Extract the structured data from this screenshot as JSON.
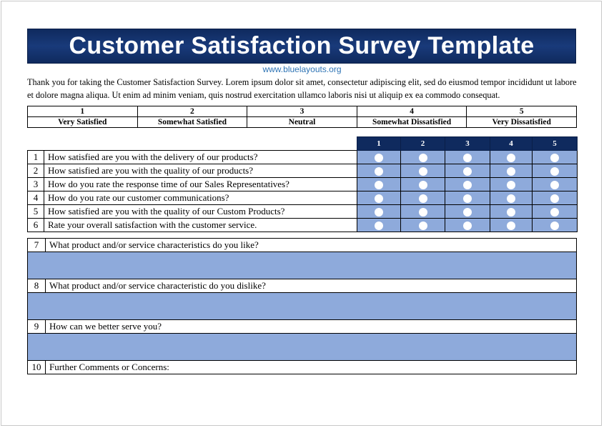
{
  "title": "Customer Satisfaction Survey Template",
  "website": "www.bluelayouts.org",
  "intro": "Thank you for taking the Customer Satisfaction Survey. Lorem ipsum dolor sit amet, consectetur adipiscing elit, sed do eiusmod tempor incididunt ut labore et dolore magna aliqua. Ut enim ad minim veniam, quis nostrud exercitation ullamco laboris nisi ut aliquip ex ea commodo consequat.",
  "scale": [
    {
      "number": "1",
      "label": "Very Satisfied"
    },
    {
      "number": "2",
      "label": "Somewhat Satisfied"
    },
    {
      "number": "3",
      "label": "Neutral"
    },
    {
      "number": "4",
      "label": "Somewhat Dissatisfied"
    },
    {
      "number": "5",
      "label": "Very Dissatisfied"
    }
  ],
  "rating_columns": [
    "1",
    "2",
    "3",
    "4",
    "5"
  ],
  "rating_questions": [
    {
      "number": "1",
      "text": "How satisfied are you with the delivery of our products?"
    },
    {
      "number": "2",
      "text": "How satisfied are you with the quality of our products?"
    },
    {
      "number": "3",
      "text": "How do you rate the response time of our Sales Representatives?"
    },
    {
      "number": "4",
      "text": "How do you rate our customer communications?"
    },
    {
      "number": "5",
      "text": "How satisfied are you with the quality of our Custom Products?"
    },
    {
      "number": "6",
      "text": "Rate your overall satisfaction with the customer service."
    }
  ],
  "open_questions": [
    {
      "number": "7",
      "text": "What product and/or service characteristics do you like?"
    },
    {
      "number": "8",
      "text": "What product and/or service characteristic do you dislike?"
    },
    {
      "number": "9",
      "text": "How can we better serve you?"
    },
    {
      "number": "10",
      "text": "Further Comments or Concerns:"
    }
  ],
  "colors": {
    "title_bg": "#0f2a5e",
    "answer_fill": "#8eaadb",
    "website": "#2e74b5"
  }
}
